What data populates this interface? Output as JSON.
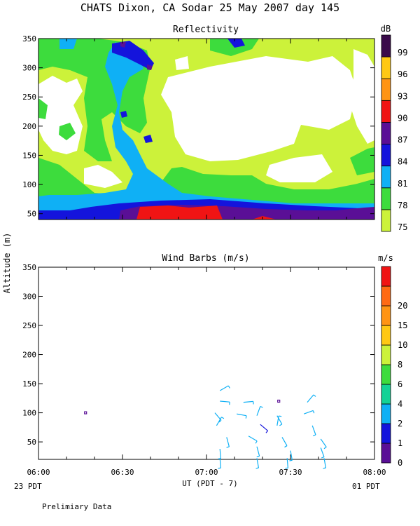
{
  "title": "CHATS Dixon, CA  Sodar  25 May 2007  day 145",
  "ylabel": "Altitude (m)",
  "x_axis": {
    "label": "UT  (PDT - 7)",
    "ticks": [
      "06:00",
      "06:30",
      "07:00",
      "07:30",
      "08:00"
    ],
    "left_note": "23 PDT",
    "right_note": "01 PDT"
  },
  "footer": "Prelimiary Data",
  "colors": {
    "white": "#ffffff",
    "yellowgreen": "#ccf23a",
    "green": "#3ddc3d",
    "sky": "#0fb0f5",
    "blue": "#1414dc",
    "purple": "#5a0f96",
    "red": "#f01414",
    "orange": "#ff9414",
    "gold": "#ffc814",
    "darkpurple": "#3a0a4a",
    "teal": "#14d296"
  },
  "chart_data": [
    {
      "type": "heatmap",
      "title": "Reflectivity",
      "colorbar_unit": "dB",
      "colorbar_ticks": [
        "75",
        "78",
        "81",
        "84",
        "87",
        "90",
        "93",
        "96",
        "99"
      ],
      "colorbar_colors": [
        "#ccf23a",
        "#3ddc3d",
        "#0fb0f5",
        "#1414dc",
        "#5a0f96",
        "#f01414",
        "#ff9414",
        "#ffc814",
        "#3a0a4a"
      ],
      "x_range": [
        "06:00",
        "08:00"
      ],
      "ylim": [
        40,
        350
      ],
      "yticks": [
        "50",
        "100",
        "150",
        "200",
        "250",
        "300",
        "350"
      ],
      "regions": [
        {
          "level": "#ccf23a",
          "note": "background 75-78 dB"
        },
        {
          "level": "#ffffff",
          "note": "below 75 dB"
        },
        {
          "level": "#3ddc3d",
          "note": "78-81 dB"
        },
        {
          "level": "#0fb0f5",
          "note": "81-84 dB"
        },
        {
          "level": "#1414dc",
          "note": "84-87 dB"
        },
        {
          "level": "#5a0f96",
          "note": "87-90 dB"
        },
        {
          "level": "#f01414",
          "note": "90-93 dB"
        }
      ]
    },
    {
      "type": "scatter",
      "title": "Wind Barbs (m/s)",
      "colorbar_unit": "m/s",
      "colorbar_ticks": [
        "0",
        "1",
        "2",
        "4",
        "6",
        "8",
        "10",
        "15",
        "20"
      ],
      "colorbar_colors": [
        "#5a0f96",
        "#1414dc",
        "#0fb0f5",
        "#14d296",
        "#3ddc3d",
        "#ccf23a",
        "#ffc814",
        "#ff9414",
        "#ff6a14",
        "#f01414"
      ],
      "x_range": [
        "06:00",
        "08:00"
      ],
      "ylim": [
        20,
        350
      ],
      "yticks": [
        "50",
        "100",
        "150",
        "200",
        "250",
        "300",
        "350"
      ],
      "barbs": [
        {
          "t": 6.28,
          "z": 100,
          "speed": 0,
          "dir": 0
        },
        {
          "t": 7.43,
          "z": 120,
          "speed": 0,
          "dir": 0
        },
        {
          "t": 7.08,
          "z": 138,
          "speed": 3,
          "dir": 60
        },
        {
          "t": 7.08,
          "z": 120,
          "speed": 3,
          "dir": 95
        },
        {
          "t": 7.22,
          "z": 118,
          "speed": 3,
          "dir": 85
        },
        {
          "t": 7.6,
          "z": 118,
          "speed": 3,
          "dir": 40
        },
        {
          "t": 7.05,
          "z": 100,
          "speed": 3,
          "dir": 140
        },
        {
          "t": 7.18,
          "z": 98,
          "speed": 3,
          "dir": 100
        },
        {
          "t": 7.3,
          "z": 95,
          "speed": 2,
          "dir": 20
        },
        {
          "t": 7.42,
          "z": 95,
          "speed": 3,
          "dir": 150
        },
        {
          "t": 7.58,
          "z": 98,
          "speed": 3,
          "dir": 70
        },
        {
          "t": 7.06,
          "z": 78,
          "speed": 3,
          "dir": 30
        },
        {
          "t": 7.32,
          "z": 80,
          "speed": 1,
          "dir": 130
        },
        {
          "t": 7.42,
          "z": 78,
          "speed": 3,
          "dir": 10
        },
        {
          "t": 7.63,
          "z": 78,
          "speed": 3,
          "dir": 160
        },
        {
          "t": 7.12,
          "z": 58,
          "speed": 3,
          "dir": 165
        },
        {
          "t": 7.25,
          "z": 60,
          "speed": 3,
          "dir": 120
        },
        {
          "t": 7.45,
          "z": 58,
          "speed": 3,
          "dir": 150
        },
        {
          "t": 7.68,
          "z": 55,
          "speed": 3,
          "dir": 145
        },
        {
          "t": 7.08,
          "z": 38,
          "speed": 3,
          "dir": 175
        },
        {
          "t": 7.3,
          "z": 42,
          "speed": 3,
          "dir": 165
        },
        {
          "t": 7.5,
          "z": 35,
          "speed": 3,
          "dir": 170
        },
        {
          "t": 7.68,
          "z": 40,
          "speed": 3,
          "dir": 160
        },
        {
          "t": 7.08,
          "z": 22,
          "speed": 3,
          "dir": 175
        },
        {
          "t": 7.3,
          "z": 22,
          "speed": 3,
          "dir": 170
        },
        {
          "t": 7.48,
          "z": 22,
          "speed": 3,
          "dir": 175
        },
        {
          "t": 7.7,
          "z": 22,
          "speed": 3,
          "dir": 170
        }
      ]
    }
  ]
}
